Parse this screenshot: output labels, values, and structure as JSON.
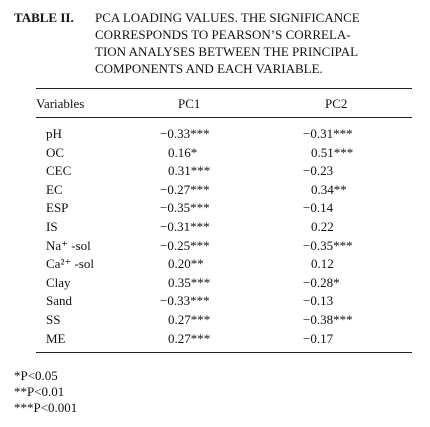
{
  "caption": {
    "label": "TABLE II.",
    "lines": [
      "PCA LOADING VALUES. THE SIGNIFICANCE",
      "CORRESPONDS TO PEARSON’S CORRELA-",
      "TION ANALYSES BETWEEN THE PRINCIPAL",
      "COMPONENTS AND EACH VARIABLE."
    ]
  },
  "table": {
    "header": [
      "Variables",
      "PC1",
      "PC2"
    ],
    "rows": [
      [
        "pH",
        "−0.33***",
        "−0.31***"
      ],
      [
        "OC",
        "0.16*",
        "0.51***"
      ],
      [
        "CEC",
        "0.31***",
        "−0.23"
      ],
      [
        "EC",
        "−0.27***",
        "0.34**"
      ],
      [
        "ESP",
        "−0.35***",
        "−0.14"
      ],
      [
        "IS",
        "−0.31***",
        "0.22"
      ],
      [
        "Na⁺ -sol",
        "−0.25***",
        "−0.35***"
      ],
      [
        "Ca²⁺ -sol",
        "0.20**",
        "0.12"
      ],
      [
        "Clay",
        "0.35***",
        "−0.28*"
      ],
      [
        "Sand",
        "−0.33***",
        "−0.13"
      ],
      [
        "SS",
        "0.27***",
        "−0.38***"
      ],
      [
        "ME",
        "0.27***",
        "−0.17"
      ]
    ]
  },
  "footnotes": [
    "*P<0.05",
    "**P<0.01",
    "***P<0.001"
  ]
}
